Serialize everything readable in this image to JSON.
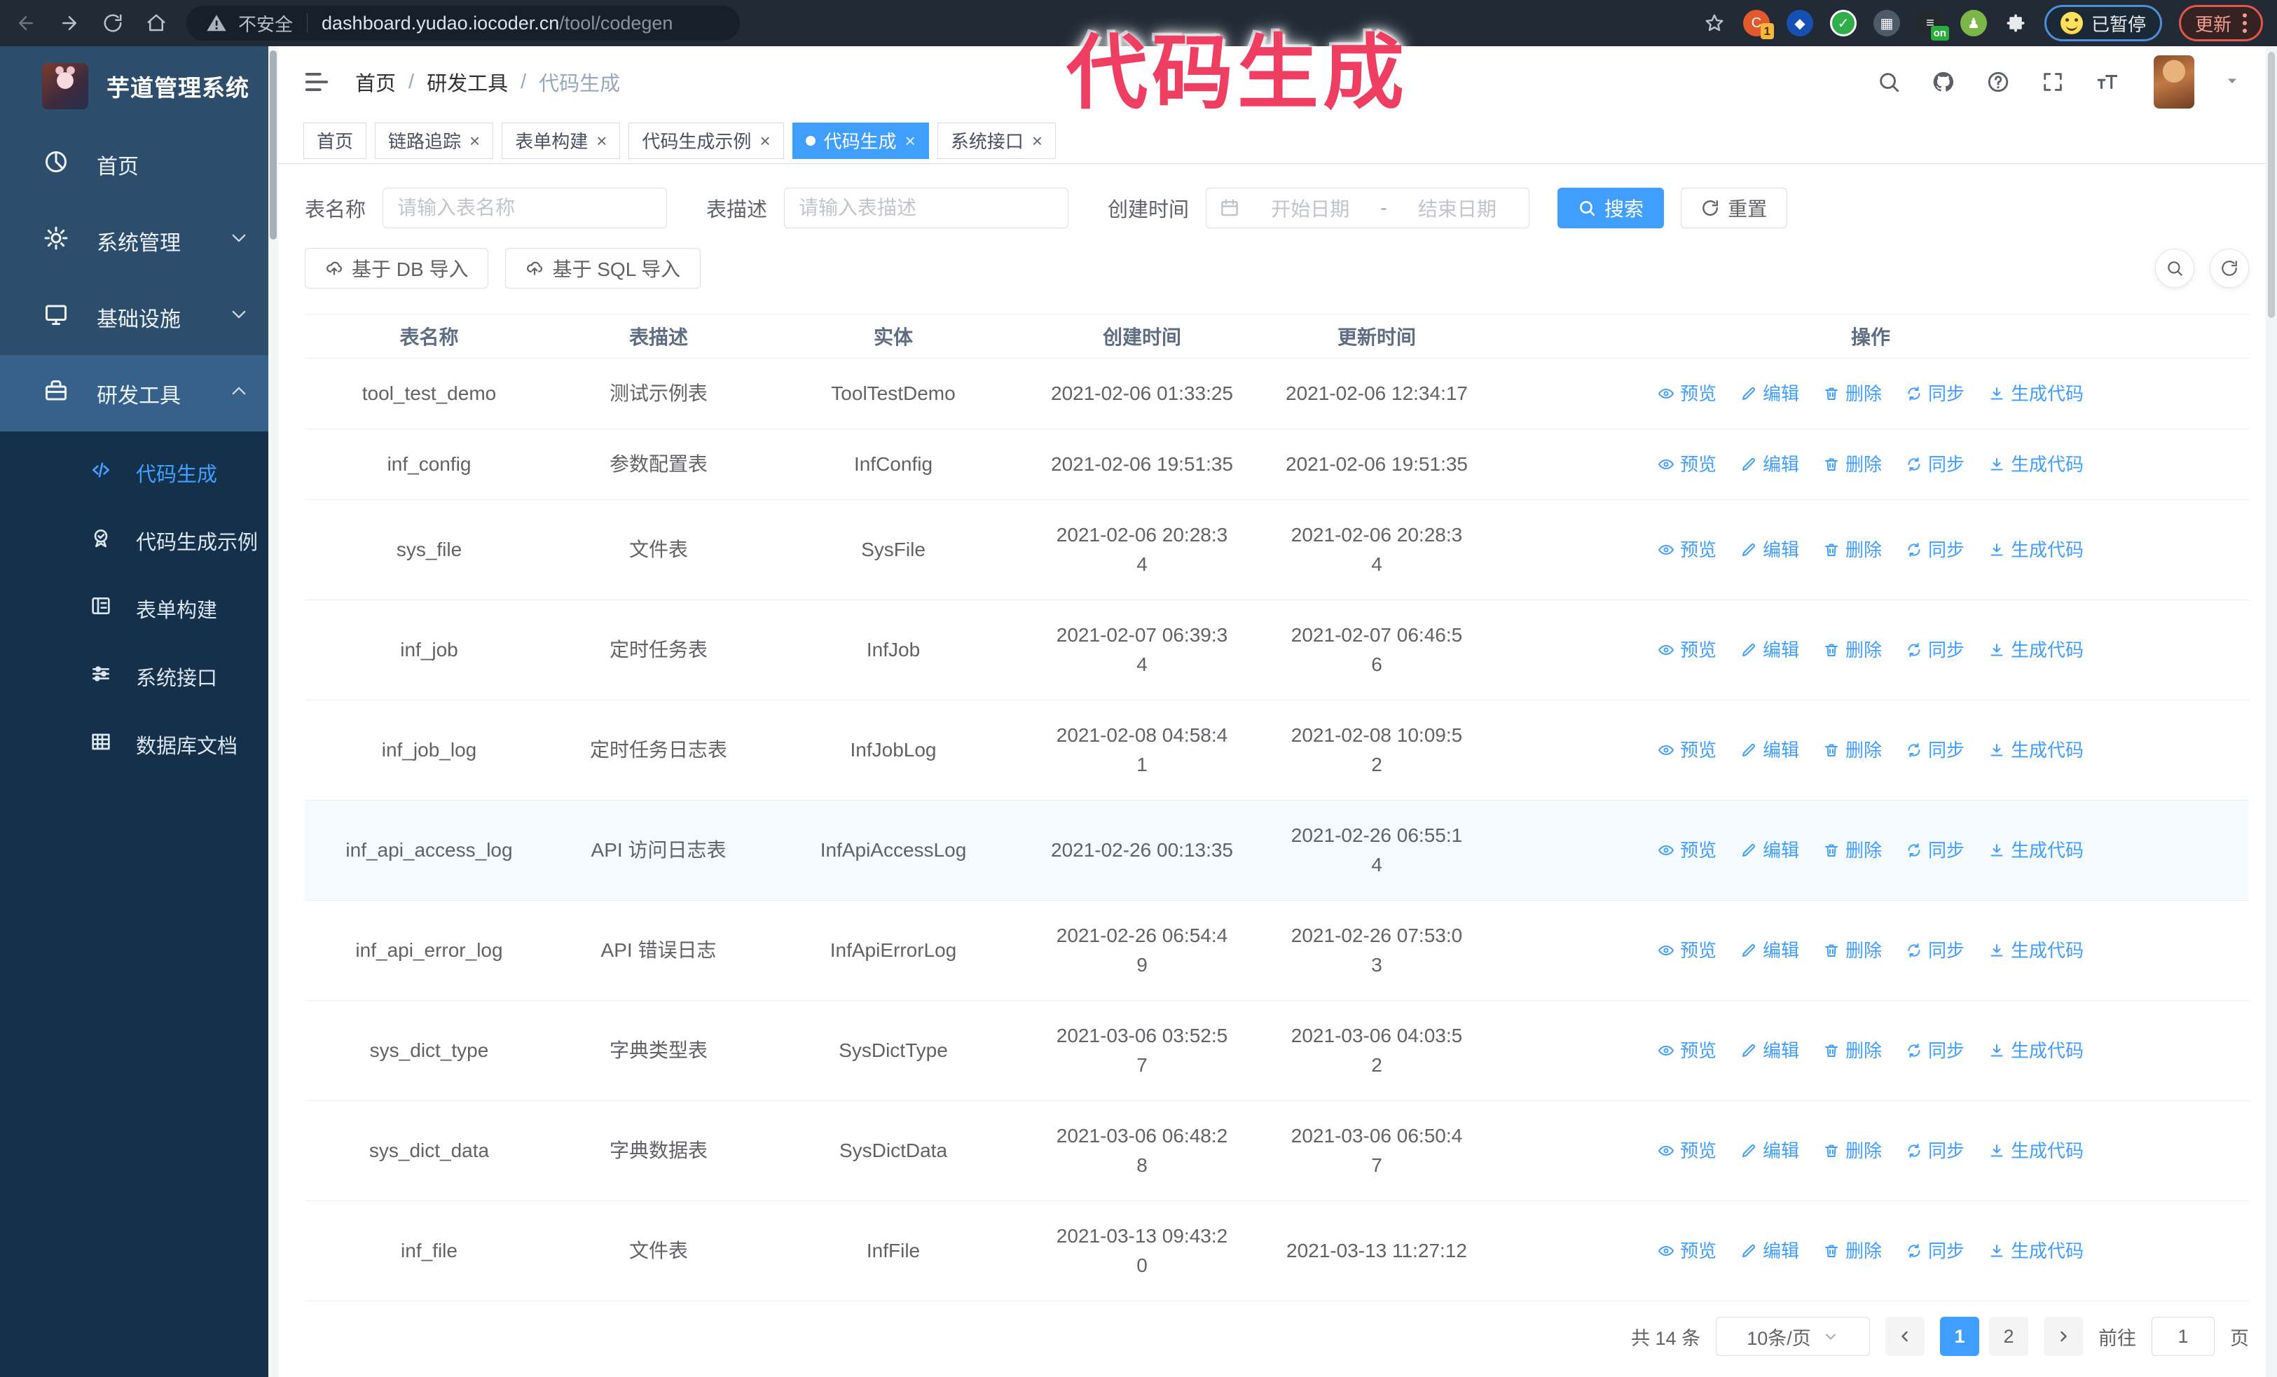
{
  "annotation": {
    "text": "代码生成",
    "color": "#ee3e61"
  },
  "browser": {
    "insecure_label": "不安全",
    "url_host": "dashboard.yudao.iocoder.cn",
    "url_path": "/tool/codegen",
    "ext_badge_1": "1",
    "ext_on_badge": "on",
    "paused_badge": "已暂停",
    "update_button": "更新"
  },
  "sidebar": {
    "app_title": "芋道管理系统",
    "items": [
      {
        "label": "首页",
        "icon": "dashboard-icon",
        "expandable": false
      },
      {
        "label": "系统管理",
        "icon": "gear-icon",
        "expandable": true,
        "expanded": false
      },
      {
        "label": "基础设施",
        "icon": "monitor-icon",
        "expandable": true,
        "expanded": false
      },
      {
        "label": "研发工具",
        "icon": "toolbox-icon",
        "expandable": true,
        "expanded": true
      }
    ],
    "subitems": [
      {
        "label": "代码生成",
        "icon": "code-icon",
        "active": true
      },
      {
        "label": "代码生成示例",
        "icon": "medal-icon",
        "active": false
      },
      {
        "label": "表单构建",
        "icon": "form-icon",
        "active": false
      },
      {
        "label": "系统接口",
        "icon": "sliders-icon",
        "active": false
      },
      {
        "label": "数据库文档",
        "icon": "database-icon",
        "active": false
      }
    ]
  },
  "header": {
    "breadcrumb": [
      "首页",
      "研发工具",
      "代码生成"
    ]
  },
  "tabs": [
    {
      "label": "首页",
      "closable": false,
      "active": false
    },
    {
      "label": "链路追踪",
      "closable": true,
      "active": false
    },
    {
      "label": "表单构建",
      "closable": true,
      "active": false
    },
    {
      "label": "代码生成示例",
      "closable": true,
      "active": false
    },
    {
      "label": "代码生成",
      "closable": true,
      "active": true
    },
    {
      "label": "系统接口",
      "closable": true,
      "active": false
    }
  ],
  "search": {
    "name_label": "表名称",
    "name_placeholder": "请输入表名称",
    "desc_label": "表描述",
    "desc_placeholder": "请输入表描述",
    "time_label": "创建时间",
    "start_placeholder": "开始日期",
    "range_separator": "-",
    "end_placeholder": "结束日期",
    "search_button": "搜索",
    "reset_button": "重置"
  },
  "toolbar": {
    "import_db": "基于 DB 导入",
    "import_sql": "基于 SQL 导入"
  },
  "table": {
    "columns": [
      "表名称",
      "表描述",
      "实体",
      "创建时间",
      "更新时间",
      "操作"
    ],
    "actions": [
      "预览",
      "编辑",
      "删除",
      "同步",
      "生成代码"
    ],
    "rows": [
      {
        "name": "tool_test_demo",
        "desc": "测试示例表",
        "entity": "ToolTestDemo",
        "created": "2021-02-06 01:33:25",
        "updated": "2021-02-06 12:34:17",
        "highlight": false
      },
      {
        "name": "inf_config",
        "desc": "参数配置表",
        "entity": "InfConfig",
        "created": "2021-02-06 19:51:35",
        "updated": "2021-02-06 19:51:35",
        "highlight": false
      },
      {
        "name": "sys_file",
        "desc": "文件表",
        "entity": "SysFile",
        "created": "2021-02-06 20:28:3\n4",
        "updated": "2021-02-06 20:28:3\n4",
        "highlight": false
      },
      {
        "name": "inf_job",
        "desc": "定时任务表",
        "entity": "InfJob",
        "created": "2021-02-07 06:39:3\n4",
        "updated": "2021-02-07 06:46:5\n6",
        "highlight": false
      },
      {
        "name": "inf_job_log",
        "desc": "定时任务日志表",
        "entity": "InfJobLog",
        "created": "2021-02-08 04:58:4\n1",
        "updated": "2021-02-08 10:09:5\n2",
        "highlight": false
      },
      {
        "name": "inf_api_access_log",
        "desc": "API 访问日志表",
        "entity": "InfApiAccessLog",
        "created": "2021-02-26 00:13:35",
        "updated": "2021-02-26 06:55:1\n4",
        "highlight": true
      },
      {
        "name": "inf_api_error_log",
        "desc": "API 错误日志",
        "entity": "InfApiErrorLog",
        "created": "2021-02-26 06:54:4\n9",
        "updated": "2021-02-26 07:53:0\n3",
        "highlight": false
      },
      {
        "name": "sys_dict_type",
        "desc": "字典类型表",
        "entity": "SysDictType",
        "created": "2021-03-06 03:52:5\n7",
        "updated": "2021-03-06 04:03:5\n2",
        "highlight": false
      },
      {
        "name": "sys_dict_data",
        "desc": "字典数据表",
        "entity": "SysDictData",
        "created": "2021-03-06 06:48:2\n8",
        "updated": "2021-03-06 06:50:4\n7",
        "highlight": false
      },
      {
        "name": "inf_file",
        "desc": "文件表",
        "entity": "InfFile",
        "created": "2021-03-13 09:43:2\n0",
        "updated": "2021-03-13 11:27:12",
        "highlight": false
      }
    ]
  },
  "pagination": {
    "total": "共 14 条",
    "page_size": "10条/页",
    "pages": [
      "1",
      "2"
    ],
    "active_page": "1",
    "goto_label": "前往",
    "goto_value": "1",
    "page_unit": "页"
  },
  "colors": {
    "primary": "#409eff",
    "sidebar_bg": "#2c4d6c",
    "submenu_bg": "#15304b",
    "annotation": "#ee3e61"
  }
}
